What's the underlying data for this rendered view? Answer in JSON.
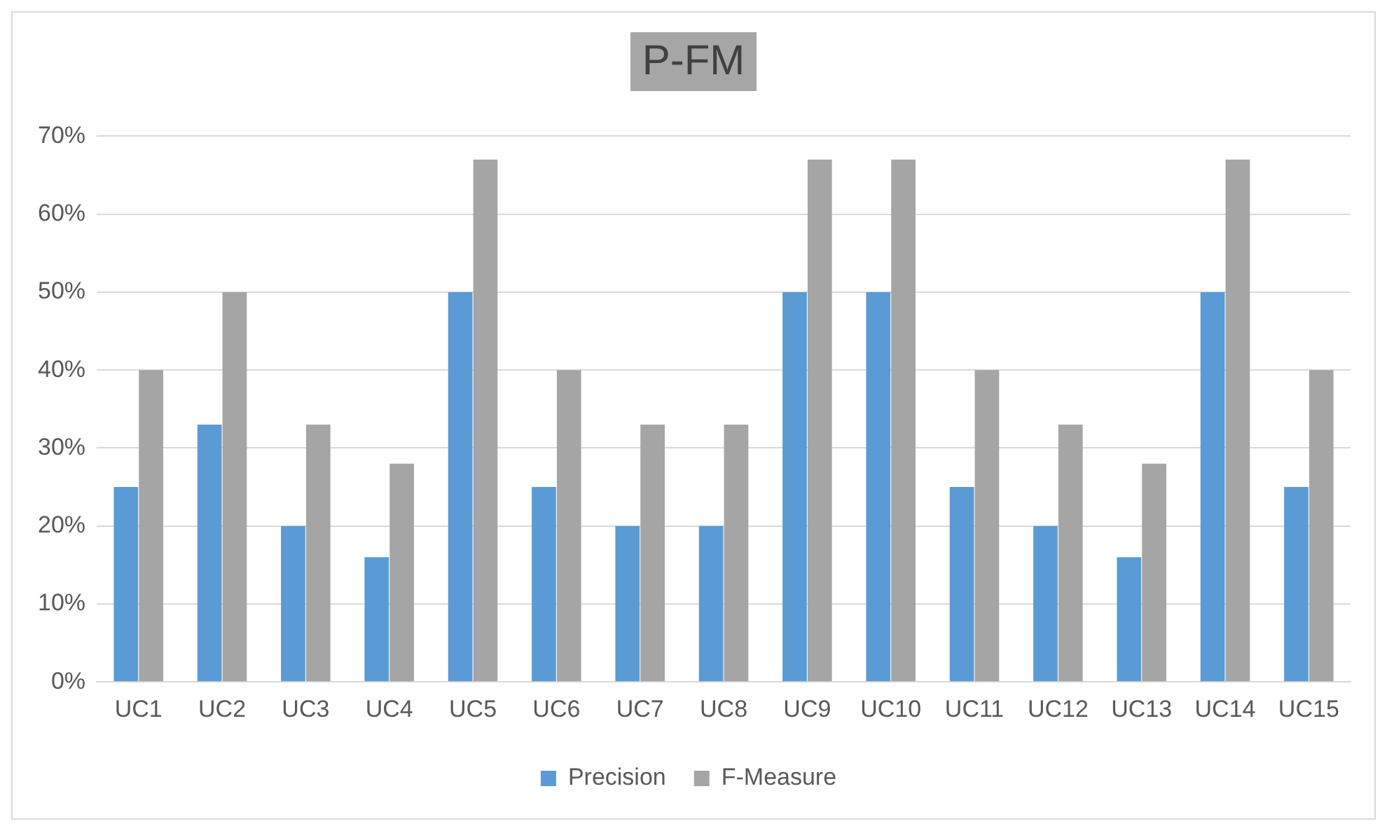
{
  "chart_data": {
    "type": "bar",
    "title": "P-FM",
    "categories": [
      "UC1",
      "UC2",
      "UC3",
      "UC4",
      "UC5",
      "UC6",
      "UC7",
      "UC8",
      "UC9",
      "UC10",
      "UC11",
      "UC12",
      "UC13",
      "UC14",
      "UC15"
    ],
    "series": [
      {
        "name": "Precision",
        "color": "#5b9bd5",
        "values": [
          25,
          33,
          20,
          16,
          50,
          25,
          20,
          20,
          50,
          50,
          25,
          20,
          16,
          50,
          25
        ]
      },
      {
        "name": "F-Measure",
        "color": "#a5a5a5",
        "values": [
          40,
          50,
          33,
          28,
          67,
          40,
          33,
          33,
          67,
          67,
          40,
          33,
          28,
          67,
          40
        ]
      }
    ],
    "ylim": [
      0,
      70
    ],
    "yticks": [
      {
        "value": 0,
        "label": "0%"
      },
      {
        "value": 10,
        "label": "10%"
      },
      {
        "value": 20,
        "label": "20%"
      },
      {
        "value": 30,
        "label": "30%"
      },
      {
        "value": 40,
        "label": "40%"
      },
      {
        "value": 50,
        "label": "50%"
      },
      {
        "value": 60,
        "label": "60%"
      },
      {
        "value": 70,
        "label": "70%"
      }
    ],
    "grid": "y",
    "legend": "bottom"
  }
}
